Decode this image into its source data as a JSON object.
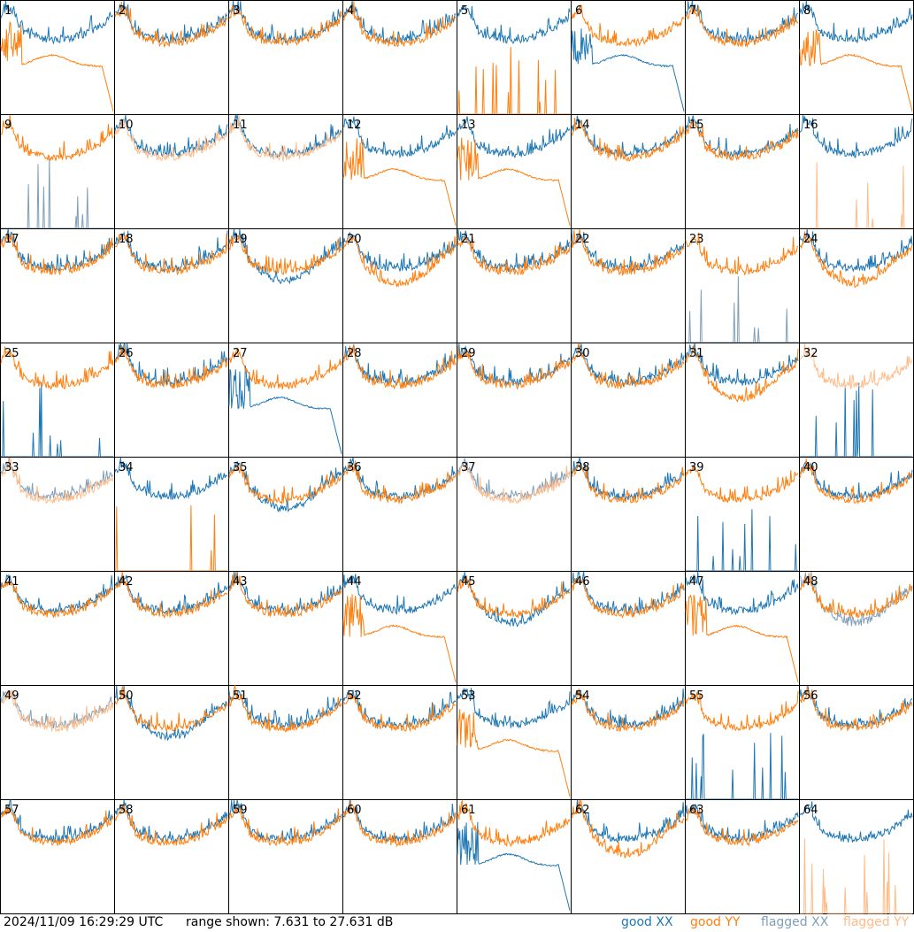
{
  "timestamp": "2024/11/09 16:29:29 UTC",
  "range_text": "range shown: 7.631 to 27.631 dB",
  "legend": {
    "good_xx": "good XX",
    "good_yy": "good YY",
    "flagged_xx": "flagged XX",
    "flagged_yy": "flagged YY"
  },
  "colors": {
    "good_xx": "#1f77b4",
    "good_yy": "#ff7f0e",
    "flagged_xx": "#7f9fb9",
    "flagged_yy": "#ffbb88"
  },
  "chart_data": {
    "type": "line",
    "layout": "8x8 small-multiples grid of per-tile spectra",
    "ylim": [
      7.631,
      27.631
    ],
    "y_units": "dB",
    "panel_labels": [
      "1",
      "2",
      "3",
      "4",
      "5",
      "6",
      "7",
      "8",
      "9",
      "10",
      "11",
      "12",
      "13",
      "14",
      "15",
      "16",
      "17",
      "18",
      "19",
      "20",
      "21",
      "22",
      "23",
      "24",
      "25",
      "26",
      "27",
      "28",
      "29",
      "30",
      "31",
      "32",
      "33",
      "34",
      "35",
      "36",
      "37",
      "38",
      "39",
      "40",
      "41",
      "42",
      "43",
      "44",
      "45",
      "46",
      "47",
      "48",
      "49",
      "50",
      "51",
      "52",
      "53",
      "54",
      "55",
      "56",
      "57",
      "58",
      "59",
      "60",
      "61",
      "62",
      "63",
      "64"
    ],
    "series": [
      {
        "name": "good XX"
      },
      {
        "name": "good YY"
      },
      {
        "name": "flagged XX"
      },
      {
        "name": "flagged YY"
      }
    ],
    "panel_styles": [
      [
        "normal",
        "cliff"
      ],
      [
        "normal",
        "normal"
      ],
      [
        "normal",
        "normal"
      ],
      [
        "normal",
        "normal"
      ],
      [
        "normal",
        "spikes"
      ],
      [
        "cliff",
        "normal"
      ],
      [
        "normal",
        "normal"
      ],
      [
        "normal",
        "cliff"
      ],
      [
        "spikes",
        "normal"
      ],
      [
        "normal",
        "normal"
      ],
      [
        "normal",
        "normal"
      ],
      [
        "normal",
        "cliff"
      ],
      [
        "normal",
        "cliff"
      ],
      [
        "normal",
        "normal"
      ],
      [
        "normal",
        "normal"
      ],
      [
        "normal",
        "spikes"
      ],
      [
        "normal",
        "normal"
      ],
      [
        "normal",
        "normal"
      ],
      [
        "low",
        "normal"
      ],
      [
        "normal",
        "low"
      ],
      [
        "normal",
        "normal"
      ],
      [
        "normal",
        "normal"
      ],
      [
        "spikes",
        "normal"
      ],
      [
        "normal",
        "low"
      ],
      [
        "spikes",
        "normal"
      ],
      [
        "normal",
        "normal"
      ],
      [
        "cliff",
        "normal"
      ],
      [
        "normal",
        "normal"
      ],
      [
        "normal",
        "normal"
      ],
      [
        "normal",
        "normal"
      ],
      [
        "normal",
        "low"
      ],
      [
        "spikes",
        "normal"
      ],
      [
        "normal",
        "normal"
      ],
      [
        "normal",
        "spikes"
      ],
      [
        "low",
        "normal"
      ],
      [
        "normal",
        "normal"
      ],
      [
        "normal",
        "normal"
      ],
      [
        "normal",
        "normal"
      ],
      [
        "spikes",
        "normal"
      ],
      [
        "normal",
        "normal"
      ],
      [
        "normal",
        "normal"
      ],
      [
        "normal",
        "normal"
      ],
      [
        "normal",
        "normal"
      ],
      [
        "normal",
        "cliff"
      ],
      [
        "low",
        "normal"
      ],
      [
        "normal",
        "normal"
      ],
      [
        "normal",
        "cliff"
      ],
      [
        "low",
        "normal"
      ],
      [
        "normal",
        "normal"
      ],
      [
        "low",
        "normal"
      ],
      [
        "normal",
        "normal"
      ],
      [
        "normal",
        "normal"
      ],
      [
        "normal",
        "cliff"
      ],
      [
        "normal",
        "normal"
      ],
      [
        "spikes",
        "normal"
      ],
      [
        "normal",
        "normal"
      ],
      [
        "normal",
        "normal"
      ],
      [
        "normal",
        "normal"
      ],
      [
        "normal",
        "normal"
      ],
      [
        "normal",
        "normal"
      ],
      [
        "cliff",
        "normal"
      ],
      [
        "normal",
        "low"
      ],
      [
        "normal",
        "normal"
      ],
      [
        "normal",
        "spikes"
      ]
    ],
    "flagged_panels": {
      "xx": [
        9,
        23,
        33,
        37,
        48,
        49
      ],
      "yy": [
        10,
        11,
        16,
        32,
        33,
        37,
        49,
        64
      ]
    }
  }
}
